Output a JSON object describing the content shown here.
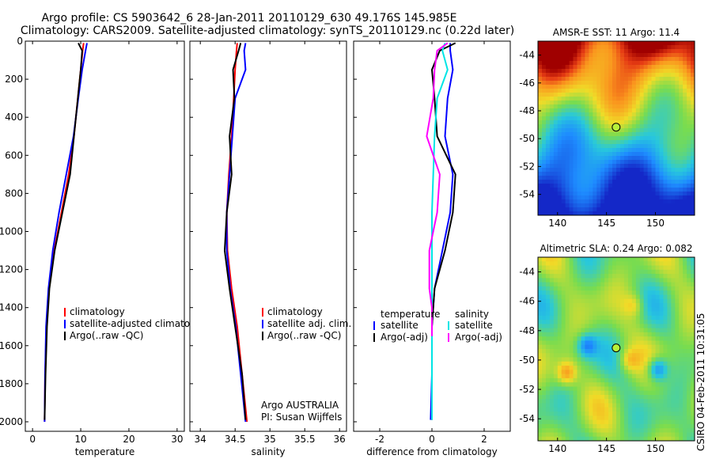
{
  "header": {
    "line1": "Argo profile: CS 5903642_6 28-Jan-2011 20110129_630 49.176S 145.985E",
    "line2": "Climatology: CARS2009. Satellite-adjusted climatology: synTS_20110129.nc (0.22d later)"
  },
  "side_stamp": "CSIRO 04-Feb-2011 10:31:05",
  "colors": {
    "climatology": "#ff0000",
    "satellite": "#0000ff",
    "argo": "#000000",
    "satellite_sal": "#00e5e5",
    "argo_sal": "#ff00ff"
  },
  "chart_data": [
    {
      "type": "line",
      "xlabel": "temperature",
      "ylabel": "",
      "xlim": [
        -1.5,
        31.5
      ],
      "ylim": [
        2050,
        0
      ],
      "x_ticks": [
        0,
        10,
        20,
        30
      ],
      "y_ticks": [
        0,
        200,
        400,
        600,
        800,
        1000,
        1200,
        1400,
        1600,
        1800,
        2000
      ],
      "legend": [
        "climatology",
        "satellite-adjusted climatolog",
        "Argo(..raw -QC)"
      ],
      "series": [
        {
          "name": "climatology",
          "color": "#ff0000",
          "x": [
            10.6,
            10.4,
            10.0,
            9.4,
            8.6,
            7.5,
            6.0,
            4.5,
            3.4,
            2.9,
            2.6,
            2.5
          ],
          "y": [
            10,
            50,
            150,
            300,
            500,
            700,
            900,
            1100,
            1300,
            1500,
            1750,
            2000
          ]
        },
        {
          "name": "satellite-adjusted climatolog",
          "color": "#0000ff",
          "x": [
            11.3,
            11.0,
            10.3,
            9.5,
            8.5,
            7.0,
            5.5,
            4.2,
            3.3,
            2.8,
            2.6,
            2.5
          ],
          "y": [
            10,
            50,
            150,
            300,
            500,
            700,
            900,
            1100,
            1300,
            1500,
            1750,
            2000
          ]
        },
        {
          "name": "Argo(..raw -QC)",
          "color": "#000000",
          "x": [
            9.5,
            10.3,
            10.0,
            9.4,
            8.6,
            7.8,
            6.2,
            4.6,
            3.5,
            3.0,
            2.7,
            2.5
          ],
          "y": [
            10,
            50,
            150,
            300,
            500,
            700,
            900,
            1100,
            1300,
            1500,
            1750,
            1990
          ]
        }
      ]
    },
    {
      "type": "line",
      "xlabel": "salinity",
      "xlim": [
        33.85,
        36.1
      ],
      "ylim": [
        2050,
        0
      ],
      "x_ticks": [
        34,
        34.5,
        35,
        35.5,
        36
      ],
      "legend": [
        "climatology",
        "satellite adj. clim.",
        "Argo(..raw -QC)"
      ],
      "series": [
        {
          "name": "climatology",
          "color": "#ff0000",
          "x": [
            34.53,
            34.52,
            34.5,
            34.48,
            34.45,
            34.41,
            34.38,
            34.39,
            34.45,
            34.53,
            34.6,
            34.67
          ],
          "y": [
            10,
            50,
            150,
            300,
            500,
            700,
            900,
            1100,
            1300,
            1500,
            1750,
            2000
          ]
        },
        {
          "name": "satellite adj. clim.",
          "color": "#0000ff",
          "x": [
            34.65,
            34.63,
            34.65,
            34.5,
            34.46,
            34.42,
            34.38,
            34.38,
            34.43,
            34.51,
            34.58,
            34.65
          ],
          "y": [
            10,
            50,
            150,
            300,
            500,
            700,
            900,
            1100,
            1300,
            1500,
            1750,
            2000
          ]
        },
        {
          "name": "Argo(..raw -QC)",
          "color": "#000000",
          "x": [
            34.58,
            34.55,
            34.47,
            34.49,
            34.42,
            34.45,
            34.38,
            34.35,
            34.42,
            34.5,
            34.6,
            34.65
          ],
          "y": [
            10,
            50,
            150,
            300,
            500,
            700,
            900,
            1100,
            1300,
            1500,
            1750,
            1990
          ]
        }
      ],
      "annotations": [
        "Argo AUSTRALIA",
        "PI: Susan Wijffels"
      ]
    },
    {
      "type": "line",
      "xlabel": "difference from climatology",
      "xlim": [
        -3.0,
        3.0
      ],
      "ylim": [
        2050,
        0
      ],
      "x_ticks": [
        -2,
        0,
        2
      ],
      "legend_groups": [
        {
          "title": "temperature",
          "items": [
            "satellite",
            "Argo(-adj)"
          ]
        },
        {
          "title": "salinity",
          "items": [
            "satellite",
            "Argo(-adj)"
          ]
        }
      ],
      "series": [
        {
          "name": "temperature satellite",
          "color": "#0000ff",
          "x": [
            0.7,
            0.7,
            0.8,
            0.6,
            0.5,
            0.8,
            0.7,
            0.4,
            0.1,
            0.0,
            0.0,
            -0.05
          ],
          "y": [
            10,
            50,
            150,
            300,
            500,
            700,
            900,
            1100,
            1300,
            1500,
            1750,
            1990
          ]
        },
        {
          "name": "temperature Argo(-adj)",
          "color": "#000000",
          "x": [
            0.9,
            0.3,
            0.0,
            0.1,
            0.2,
            0.9,
            0.8,
            0.5,
            0.1,
            0.0,
            0.0,
            0.0
          ],
          "y": [
            10,
            50,
            150,
            300,
            500,
            700,
            900,
            1100,
            1300,
            1500,
            1750,
            1990
          ]
        },
        {
          "name": "salinity satellite",
          "color": "#00e5e5",
          "x": [
            0.5,
            0.4,
            0.6,
            0.2,
            0.1,
            0.05,
            0.0,
            0.0,
            0.0,
            0.0,
            0.0,
            0.0
          ],
          "y": [
            10,
            50,
            150,
            300,
            500,
            700,
            900,
            1100,
            1300,
            1500,
            1750,
            1990
          ]
        },
        {
          "name": "salinity Argo(-adj)",
          "color": "#ff00ff",
          "x": [
            0.6,
            0.2,
            0.1,
            0.05,
            -0.2,
            0.3,
            0.2,
            -0.1,
            -0.1,
            0.0,
            0.0,
            0.0
          ],
          "y": [
            10,
            50,
            150,
            300,
            500,
            700,
            900,
            1100,
            1300,
            1400,
            1500,
            1550
          ]
        }
      ]
    },
    {
      "type": "heatmap",
      "title": "AMSR-E SST: 11 Argo: 11.4",
      "xlim": [
        138,
        154
      ],
      "ylim": [
        -55.5,
        -43
      ],
      "x_ticks": [
        140,
        145,
        150
      ],
      "y_ticks": [
        -44,
        -46,
        -48,
        -50,
        -52,
        -54
      ],
      "marker": {
        "lon": 145.985,
        "lat": -49.176
      }
    },
    {
      "type": "heatmap",
      "title": "Altimetric SLA: 0.24 Argo: 0.082",
      "xlim": [
        138,
        154
      ],
      "ylim": [
        -55.5,
        -43
      ],
      "x_ticks": [
        140,
        145,
        150
      ],
      "y_ticks": [
        -44,
        -46,
        -48,
        -50,
        -52,
        -54
      ],
      "marker": {
        "lon": 145.985,
        "lat": -49.176
      }
    }
  ]
}
